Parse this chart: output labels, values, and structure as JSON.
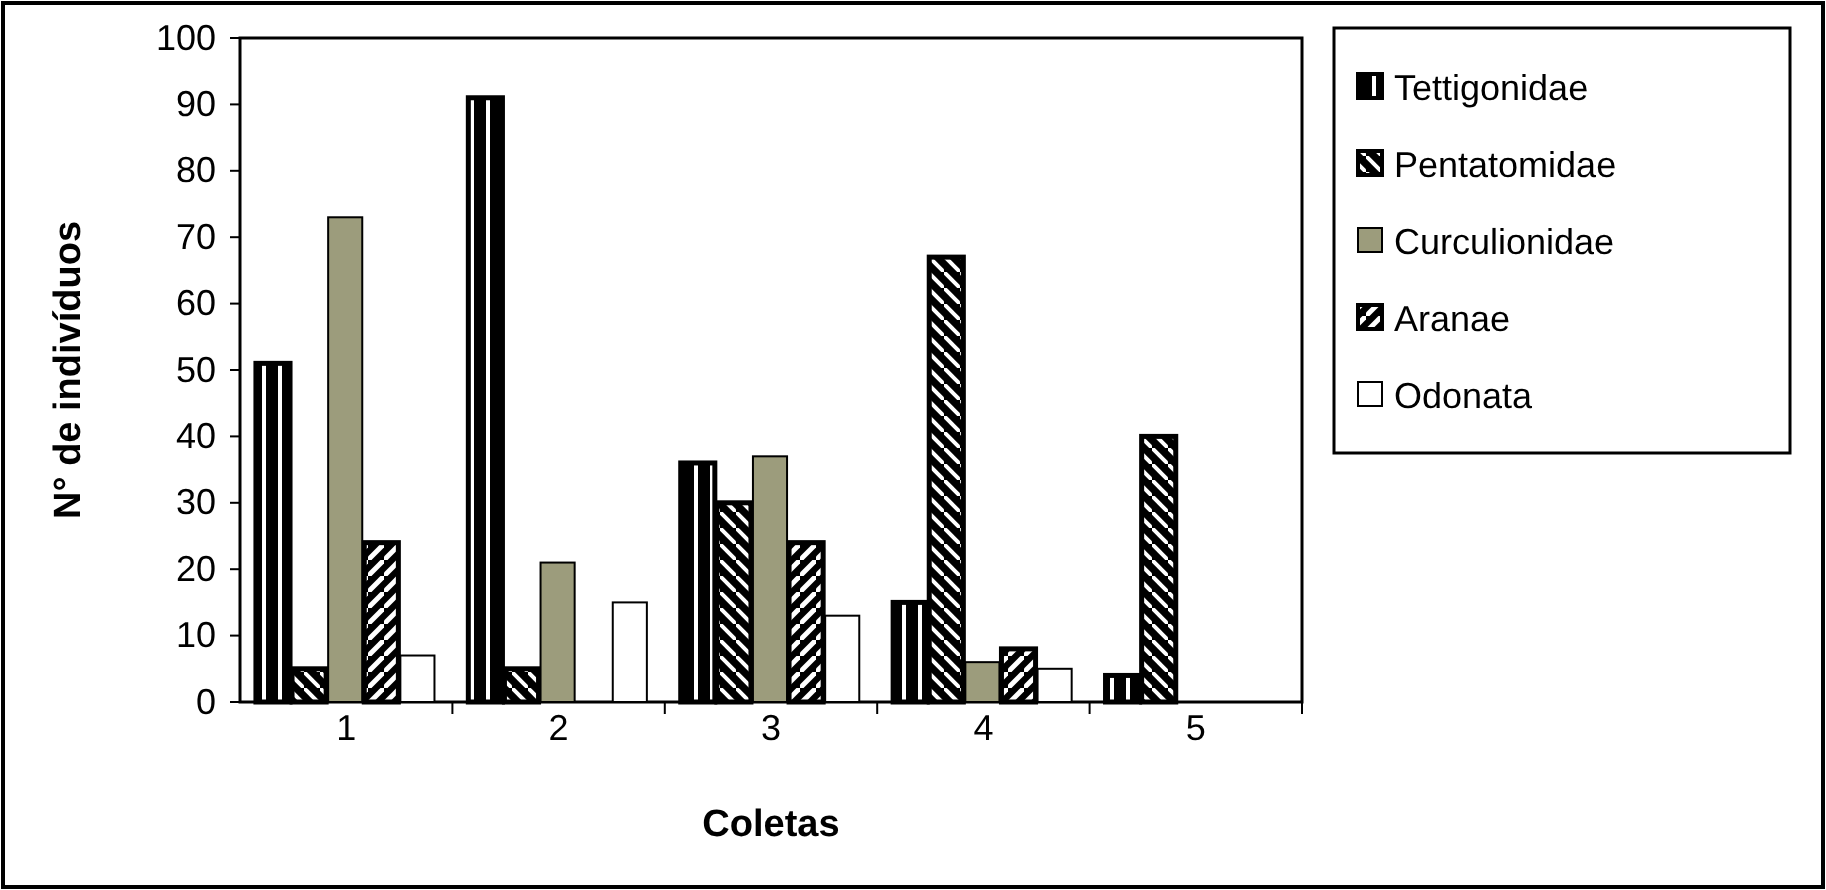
{
  "chart_data": {
    "type": "bar",
    "xlabel": "Coletas",
    "ylabel": "N° de indivíduos",
    "categories": [
      "1",
      "2",
      "3",
      "4",
      "5"
    ],
    "series": [
      {
        "name": "Tettigonidae",
        "color": "#000000",
        "values": [
          51,
          91,
          36,
          15,
          4
        ]
      },
      {
        "name": "Pentatomidae",
        "color": "#000000",
        "values": [
          5,
          5,
          30,
          67,
          40
        ]
      },
      {
        "name": "Curculionidae",
        "color": "#9c9c7c",
        "values": [
          73,
          21,
          37,
          6,
          0
        ]
      },
      {
        "name": "Aranae",
        "color": "#000000",
        "values": [
          24,
          0,
          24,
          8,
          0
        ]
      },
      {
        "name": "Odonata",
        "color": "#ffffff",
        "values": [
          7,
          15,
          13,
          5,
          0
        ]
      }
    ],
    "ylim": [
      0,
      100
    ],
    "yticks": [
      0,
      10,
      20,
      30,
      40,
      50,
      60,
      70,
      80,
      90,
      100
    ],
    "grid": false,
    "legend": "right"
  }
}
